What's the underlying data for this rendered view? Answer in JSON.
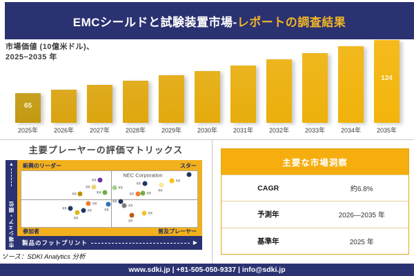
{
  "header": {
    "title_main": "EMCシールドと試験装置市場-",
    "title_accent": "レポートの調査結果"
  },
  "market_value_label": {
    "line1": "市場価値 (10億米ドル)、",
    "line2": "2025−2035 年"
  },
  "chart_data": [
    {
      "type": "bar",
      "title": "市場価値 (10億米ドル)、2025−2035 年",
      "categories": [
        "2025年",
        "2026年",
        "2027年",
        "2028年",
        "2029年",
        "2030年",
        "2031年",
        "2032年",
        "2033年",
        "2034年",
        "2035年"
      ],
      "values": [
        65,
        69,
        74,
        79,
        85,
        90,
        96,
        103,
        110,
        117,
        124
      ],
      "labeled_values": {
        "first": "65",
        "last": "124"
      },
      "ylabel": "市場価値 (10億米ドル)",
      "bar_color_first": "#c3990f",
      "bar_color_start": "#d9a30e",
      "bar_color_end": "#f4b50a"
    },
    {
      "type": "scatter",
      "title": "主要プレーヤーの評価マトリックス",
      "xlabel": "製品のフットプリント",
      "ylabel": "市場シェア・順位",
      "quadrants": {
        "top_left": "新興のリーダー",
        "top_right": "スター",
        "bottom_left": "参加者",
        "bottom_right": "普及プレーヤー"
      },
      "annotation": {
        "text": "NEC Corporation",
        "x": 69,
        "y": 7.5
      },
      "points": [
        {
          "x": 44.7,
          "y": 16.0,
          "color": "#7030a0",
          "label": "xx",
          "label_pos": "left"
        },
        {
          "x": 41.2,
          "y": 29.0,
          "color": "#edd576",
          "label": "xx",
          "label_pos": "left"
        },
        {
          "x": 33.5,
          "y": 41.0,
          "color": "#bf9000",
          "label": "xx",
          "label_pos": "left"
        },
        {
          "x": 47.4,
          "y": 38.0,
          "color": "#6fad47",
          "label": "xx",
          "label_pos": "left"
        },
        {
          "x": 52.9,
          "y": 30.0,
          "color": "#a8d08d",
          "label": "xx",
          "label_pos": "right"
        },
        {
          "x": 70.0,
          "y": 22.3,
          "color": "#1f3864",
          "label": "xx",
          "label_pos": "left"
        },
        {
          "x": 79.8,
          "y": 24.7,
          "color": "#ffe699",
          "label": "xx",
          "label_pos": "below"
        },
        {
          "x": 85.6,
          "y": 17.5,
          "color": "#ffc000",
          "label": "xx",
          "label_pos": "right"
        },
        {
          "x": 95.4,
          "y": 6.7,
          "color": "#1f3864",
          "label": "",
          "label_pos": "right"
        },
        {
          "x": 66.1,
          "y": 40.8,
          "color": "#ed7d31",
          "label": "xx",
          "label_pos": "left"
        },
        {
          "x": 69.0,
          "y": 39.6,
          "color": "#70ad47",
          "label": "xx",
          "label_pos": "right"
        },
        {
          "x": 38.2,
          "y": 57.6,
          "color": "#ed7d31",
          "label": "xx",
          "label_pos": "right"
        },
        {
          "x": 49.3,
          "y": 59.5,
          "color": "#2e75b6",
          "label": "xx",
          "label_pos": "below"
        },
        {
          "x": 27.9,
          "y": 66.4,
          "color": "#1f3864",
          "label": "xx",
          "label_pos": "left"
        },
        {
          "x": 35.3,
          "y": 70.3,
          "color": "#203864",
          "label": "xx",
          "label_pos": "right"
        },
        {
          "x": 31.8,
          "y": 73.6,
          "color": "#dfb520",
          "label": "xx",
          "label_pos": "below"
        },
        {
          "x": 56.4,
          "y": 54.4,
          "color": "#203864",
          "label": "xx",
          "label_pos": "left"
        },
        {
          "x": 58.6,
          "y": 61.6,
          "color": "#7f7f7f",
          "label": "xx",
          "label_pos": "right"
        },
        {
          "x": 62.9,
          "y": 78.7,
          "color": "#c55a11",
          "label": "xx",
          "label_pos": "below"
        },
        {
          "x": 69.8,
          "y": 74.8,
          "color": "#f0c434",
          "label": "xx",
          "label_pos": "right"
        }
      ]
    }
  ],
  "insights_table": {
    "title": "主要な市場洞察",
    "rows": [
      {
        "label": "CAGR",
        "value": "約6.8%"
      },
      {
        "label": "予測年",
        "value": "2026—2035 年"
      },
      {
        "label": "基準年",
        "value": "2025 年"
      }
    ]
  },
  "source_note": "ソース：SDKI Analytics 分析",
  "footer": {
    "text": "www.sdki.jp | +81-505-050-9337 | info@sdki.jp"
  },
  "colors": {
    "navy": "#2b3271",
    "gold_frame": "#f2b01d",
    "gold_table_header": "#f5ae0e",
    "bar_gold": "#e9a911",
    "title_accent": "#f0b428"
  }
}
